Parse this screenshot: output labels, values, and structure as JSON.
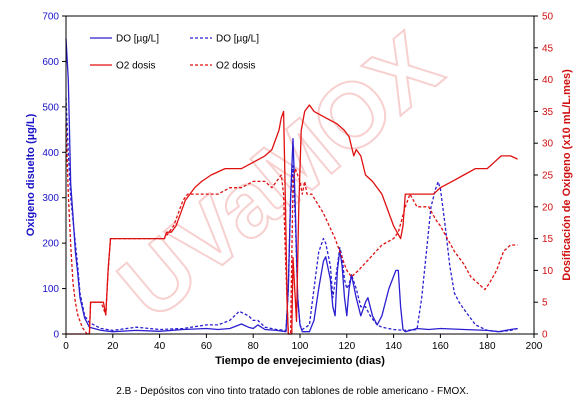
{
  "chart_data": {
    "type": "line",
    "title": "",
    "xlabel": "Tiempo de envejecimiento (dias)",
    "ylabel_left": "Oxigeno disuelto (µg/L)",
    "ylabel_right": "Dosificación de Oxigeno (x10 mL/L.mes)",
    "xlim": [
      0,
      200
    ],
    "ylim_left": [
      0,
      700
    ],
    "ylim_right": [
      0,
      50
    ],
    "x_ticks": [
      "0",
      "20",
      "40",
      "60",
      "80",
      "100",
      "120",
      "140",
      "160",
      "180",
      "200"
    ],
    "y_left_ticks": [
      "0",
      "100",
      "200",
      "300",
      "400",
      "500",
      "600",
      "700"
    ],
    "y_right_ticks": [
      "0",
      "5",
      "10",
      "15",
      "20",
      "25",
      "30",
      "35",
      "40",
      "45",
      "50"
    ],
    "legend_placement": "top",
    "grid": false,
    "watermark": "UVaMOX",
    "series": [
      {
        "name": "DO [µg/L]",
        "axis": "left",
        "color": "#2b1fd0",
        "dash": "solid",
        "points": [
          [
            0,
            650
          ],
          [
            1,
            560
          ],
          [
            2,
            330
          ],
          [
            3,
            260
          ],
          [
            4,
            180
          ],
          [
            5,
            135
          ],
          [
            6,
            80
          ],
          [
            8,
            35
          ],
          [
            10,
            15
          ],
          [
            15,
            8
          ],
          [
            20,
            5
          ],
          [
            30,
            8
          ],
          [
            40,
            6
          ],
          [
            50,
            10
          ],
          [
            60,
            12
          ],
          [
            65,
            10
          ],
          [
            70,
            12
          ],
          [
            75,
            22
          ],
          [
            78,
            15
          ],
          [
            80,
            12
          ],
          [
            82,
            20
          ],
          [
            85,
            10
          ],
          [
            90,
            8
          ],
          [
            94,
            5
          ],
          [
            95,
            100
          ],
          [
            96,
            300
          ],
          [
            97,
            430
          ],
          [
            98,
            280
          ],
          [
            99,
            80
          ],
          [
            100,
            20
          ],
          [
            101,
            5
          ],
          [
            104,
            5
          ],
          [
            106,
            30
          ],
          [
            108,
            100
          ],
          [
            110,
            160
          ],
          [
            111,
            170
          ],
          [
            113,
            120
          ],
          [
            114,
            60
          ],
          [
            115,
            40
          ],
          [
            116,
            140
          ],
          [
            117,
            185
          ],
          [
            118,
            150
          ],
          [
            119,
            80
          ],
          [
            120,
            40
          ],
          [
            121,
            100
          ],
          [
            122,
            130
          ],
          [
            124,
            80
          ],
          [
            126,
            40
          ],
          [
            128,
            70
          ],
          [
            129,
            80
          ],
          [
            131,
            40
          ],
          [
            133,
            20
          ],
          [
            135,
            40
          ],
          [
            138,
            100
          ],
          [
            141,
            140
          ],
          [
            142,
            140
          ],
          [
            143,
            60
          ],
          [
            144,
            10
          ],
          [
            145,
            5
          ],
          [
            150,
            12
          ],
          [
            155,
            10
          ],
          [
            160,
            12
          ],
          [
            170,
            10
          ],
          [
            180,
            8
          ],
          [
            185,
            5
          ],
          [
            190,
            10
          ],
          [
            193,
            12
          ]
        ]
      },
      {
        "name": "DO [µg/L]",
        "axis": "left",
        "color": "#2b1fd0",
        "dash": "dashed",
        "points": [
          [
            0,
            520
          ],
          [
            1,
            400
          ],
          [
            2,
            300
          ],
          [
            3,
            250
          ],
          [
            4,
            200
          ],
          [
            5,
            150
          ],
          [
            6,
            90
          ],
          [
            8,
            40
          ],
          [
            10,
            25
          ],
          [
            15,
            12
          ],
          [
            20,
            8
          ],
          [
            30,
            15
          ],
          [
            40,
            10
          ],
          [
            50,
            12
          ],
          [
            60,
            20
          ],
          [
            65,
            20
          ],
          [
            70,
            30
          ],
          [
            74,
            50
          ],
          [
            78,
            40
          ],
          [
            80,
            30
          ],
          [
            82,
            30
          ],
          [
            85,
            15
          ],
          [
            90,
            10
          ],
          [
            94,
            8
          ],
          [
            95,
            100
          ],
          [
            96,
            300
          ],
          [
            97,
            370
          ],
          [
            98,
            250
          ],
          [
            99,
            80
          ],
          [
            100,
            20
          ],
          [
            101,
            10
          ],
          [
            104,
            20
          ],
          [
            106,
            100
          ],
          [
            108,
            180
          ],
          [
            110,
            210
          ],
          [
            111,
            200
          ],
          [
            113,
            150
          ],
          [
            114,
            80
          ],
          [
            116,
            150
          ],
          [
            117,
            190
          ],
          [
            118,
            170
          ],
          [
            119,
            120
          ],
          [
            120,
            100
          ],
          [
            121,
            110
          ],
          [
            122,
            130
          ],
          [
            124,
            100
          ],
          [
            126,
            60
          ],
          [
            128,
            60
          ],
          [
            130,
            40
          ],
          [
            133,
            20
          ],
          [
            135,
            15
          ],
          [
            140,
            10
          ],
          [
            145,
            8
          ],
          [
            150,
            10
          ],
          [
            152,
            80
          ],
          [
            154,
            180
          ],
          [
            156,
            280
          ],
          [
            158,
            320
          ],
          [
            159,
            335
          ],
          [
            160,
            320
          ],
          [
            162,
            240
          ],
          [
            164,
            150
          ],
          [
            166,
            90
          ],
          [
            168,
            70
          ],
          [
            170,
            55
          ],
          [
            175,
            20
          ],
          [
            180,
            8
          ],
          [
            185,
            5
          ],
          [
            190,
            8
          ],
          [
            193,
            12
          ]
        ]
      },
      {
        "name": "O2 dosis",
        "axis": "right",
        "color": "#e01010",
        "dash": "solid",
        "points": [
          [
            0,
            0
          ],
          [
            10,
            0
          ],
          [
            10.5,
            5
          ],
          [
            12,
            5
          ],
          [
            16,
            5
          ],
          [
            17,
            3
          ],
          [
            18,
            10
          ],
          [
            19,
            15
          ],
          [
            20,
            15
          ],
          [
            30,
            15
          ],
          [
            40,
            15
          ],
          [
            42,
            15
          ],
          [
            43,
            16
          ],
          [
            45,
            16
          ],
          [
            47,
            17
          ],
          [
            49,
            19
          ],
          [
            51,
            21
          ],
          [
            55,
            23
          ],
          [
            58,
            24
          ],
          [
            62,
            25
          ],
          [
            68,
            26
          ],
          [
            75,
            26
          ],
          [
            80,
            27
          ],
          [
            85,
            28
          ],
          [
            88,
            29
          ],
          [
            91,
            32
          ],
          [
            92,
            34
          ],
          [
            93,
            35
          ],
          [
            93.8,
            20
          ],
          [
            94.5,
            5
          ],
          [
            95,
            0
          ],
          [
            96.5,
            0
          ],
          [
            97,
            12
          ],
          [
            98.5,
            2
          ],
          [
            99.5,
            20
          ],
          [
            100.5,
            32
          ],
          [
            102,
            35
          ],
          [
            104,
            36
          ],
          [
            106,
            35
          ],
          [
            111,
            34
          ],
          [
            116,
            33
          ],
          [
            119,
            32
          ],
          [
            121,
            31
          ],
          [
            123,
            28
          ],
          [
            124,
            29
          ],
          [
            126,
            28
          ],
          [
            128,
            25
          ],
          [
            131,
            24
          ],
          [
            135,
            22
          ],
          [
            140,
            17
          ],
          [
            143,
            15
          ],
          [
            144,
            17
          ],
          [
            145,
            22
          ],
          [
            150,
            22
          ],
          [
            155,
            22
          ],
          [
            157,
            22
          ],
          [
            160,
            23
          ],
          [
            165,
            24
          ],
          [
            170,
            25
          ],
          [
            175,
            26
          ],
          [
            180,
            26
          ],
          [
            183,
            27
          ],
          [
            186,
            28
          ],
          [
            190,
            28
          ],
          [
            193,
            27.5
          ]
        ]
      },
      {
        "name": "O2 dosis",
        "axis": "right",
        "color": "#e01010",
        "dash": "dashed",
        "points": [
          [
            0,
            33
          ],
          [
            1,
            22
          ],
          [
            2,
            14
          ],
          [
            3,
            8
          ],
          [
            4,
            5
          ],
          [
            5,
            3
          ],
          [
            7,
            1
          ],
          [
            9,
            0
          ],
          [
            10,
            0
          ],
          [
            10.5,
            5
          ],
          [
            15,
            5
          ],
          [
            17,
            3
          ],
          [
            18,
            10
          ],
          [
            19,
            15
          ],
          [
            20,
            15
          ],
          [
            40,
            15
          ],
          [
            42,
            15
          ],
          [
            44,
            16
          ],
          [
            46,
            17
          ],
          [
            48,
            19
          ],
          [
            50,
            21
          ],
          [
            52,
            22
          ],
          [
            65,
            22
          ],
          [
            70,
            23
          ],
          [
            75,
            23
          ],
          [
            80,
            24
          ],
          [
            85,
            24
          ],
          [
            88,
            23
          ],
          [
            92,
            25
          ],
          [
            93,
            22
          ],
          [
            93.8,
            12
          ],
          [
            95,
            0
          ],
          [
            96,
            0
          ],
          [
            96.5,
            12
          ],
          [
            97,
            24
          ],
          [
            98,
            26
          ],
          [
            99,
            25
          ],
          [
            100,
            24
          ],
          [
            101,
            22
          ],
          [
            102,
            24
          ],
          [
            103,
            22
          ],
          [
            105,
            22
          ],
          [
            110,
            19
          ],
          [
            115,
            15
          ],
          [
            118,
            12
          ],
          [
            120,
            10
          ],
          [
            122,
            9
          ],
          [
            125,
            10
          ],
          [
            130,
            12
          ],
          [
            135,
            14
          ],
          [
            140,
            15
          ],
          [
            142,
            16
          ],
          [
            145,
            20
          ],
          [
            147,
            22
          ],
          [
            150,
            20
          ],
          [
            155,
            20
          ],
          [
            158,
            18
          ],
          [
            160,
            17
          ],
          [
            163,
            15
          ],
          [
            166,
            13
          ],
          [
            170,
            11
          ],
          [
            173,
            9
          ],
          [
            176,
            8
          ],
          [
            179,
            7
          ],
          [
            181,
            8
          ],
          [
            184,
            10
          ],
          [
            187,
            13
          ],
          [
            190,
            14
          ],
          [
            193,
            14
          ]
        ]
      }
    ]
  },
  "caption": "2.B - Depósitos con vino tinto tratado con tablones de roble americano - FMOX."
}
